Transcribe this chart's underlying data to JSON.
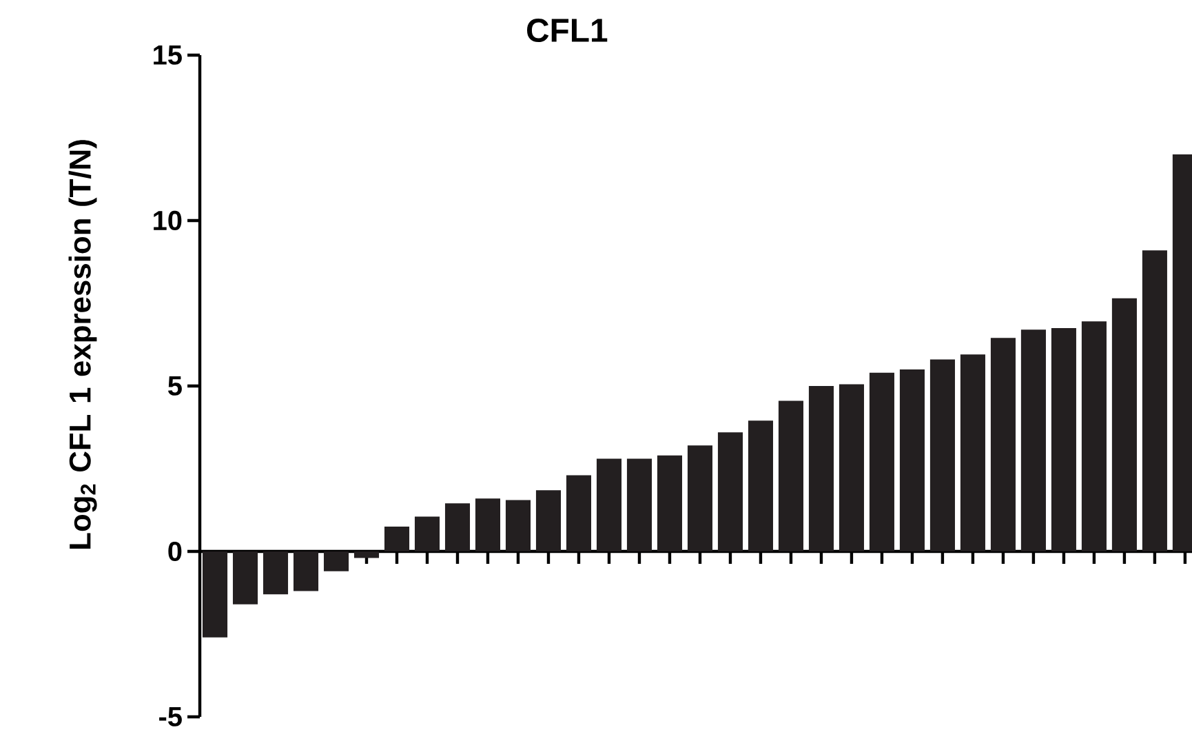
{
  "chart_data": {
    "type": "bar",
    "title": "CFL1",
    "ylabel": "Log$_{2}$ CFL 1 expression (T/N)",
    "categories": [
      null,
      null,
      null,
      null,
      null,
      null,
      null,
      null,
      null,
      null,
      null,
      null,
      null,
      null,
      null,
      null,
      null,
      null,
      null,
      null,
      null,
      null,
      null,
      null,
      null,
      null,
      null,
      null,
      null,
      null,
      null,
      null,
      null
    ],
    "values": [
      -2.6,
      -1.6,
      -1.3,
      -1.2,
      -0.6,
      -0.2,
      0.75,
      1.05,
      1.45,
      1.6,
      1.55,
      1.85,
      2.3,
      2.8,
      2.8,
      2.9,
      3.2,
      3.6,
      3.95,
      4.55,
      5.0,
      5.05,
      5.4,
      5.5,
      5.8,
      5.95,
      6.45,
      6.7,
      6.75,
      6.95,
      7.65,
      9.1,
      12.0
    ],
    "color": "#231f20",
    "ylim": [
      -5,
      15
    ],
    "yticks": [
      -5,
      0,
      5,
      10,
      15
    ],
    "tick_labels": "y"
  }
}
